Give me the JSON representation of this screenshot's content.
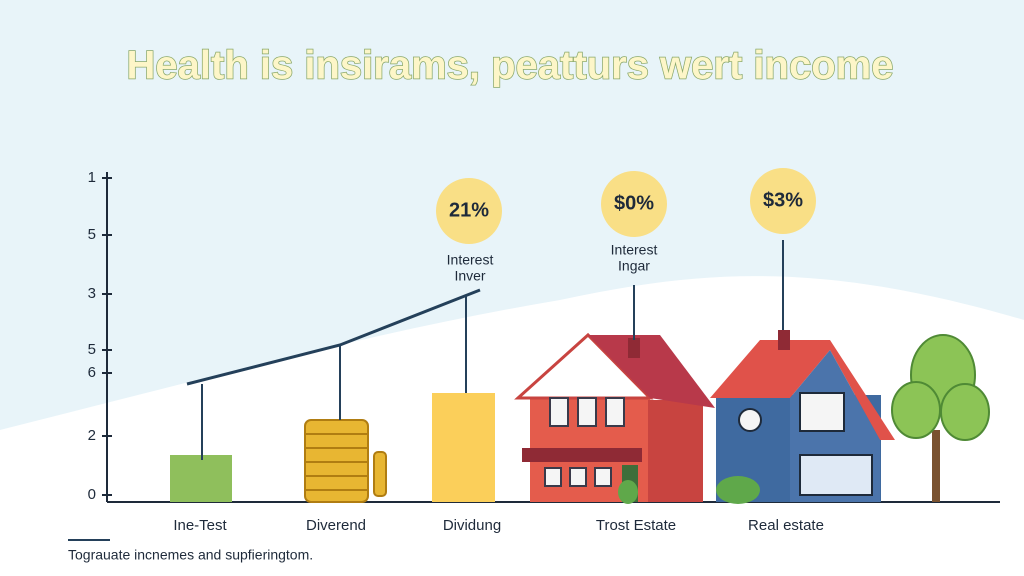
{
  "header": {
    "title": "Health is insirams, peatturs wert income"
  },
  "axis_labels": [
    "1",
    "5",
    "3",
    "5",
    "6",
    "2",
    "0"
  ],
  "categories": [
    "Ine-Test",
    "Diverend",
    "Dividung",
    "Trost Estate",
    "Real estate"
  ],
  "badges": [
    "21%",
    "$0%",
    "$3%"
  ],
  "captions": [
    [
      "Interest",
      "Inver"
    ],
    [
      "Interest",
      "Ingar"
    ]
  ],
  "footnote": "Tograuate incnemes and supfieringtom."
}
